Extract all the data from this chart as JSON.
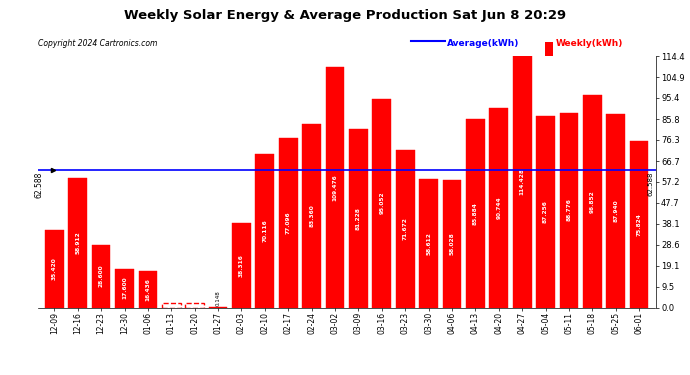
{
  "title": "Weekly Solar Energy & Average Production Sat Jun 8 20:29",
  "copyright": "Copyright 2024 Cartronics.com",
  "average_label": "Average(kWh)",
  "weekly_label": "Weekly(kWh)",
  "average_value": 62.588,
  "categories": [
    "12-09",
    "12-16",
    "12-23",
    "12-30",
    "01-06",
    "01-13",
    "01-20",
    "01-27",
    "02-03",
    "02-10",
    "02-17",
    "02-24",
    "03-02",
    "03-09",
    "03-16",
    "03-23",
    "03-30",
    "04-06",
    "04-13",
    "04-20",
    "04-27",
    "05-04",
    "05-11",
    "05-18",
    "05-25",
    "06-01"
  ],
  "values": [
    35.42,
    58.912,
    28.6,
    17.6,
    16.436,
    0.0,
    0.0,
    0.148,
    38.316,
    70.116,
    77.096,
    83.36,
    109.476,
    81.228,
    95.052,
    71.672,
    58.612,
    58.028,
    85.884,
    90.744,
    114.428,
    87.256,
    88.776,
    96.852,
    87.94,
    75.824
  ],
  "bar_color": "#ff0000",
  "avg_line_color": "blue",
  "grid_color": "#bbbbbb",
  "background_color": "#ffffff",
  "ylabel_right": [
    "0.0",
    "9.5",
    "19.1",
    "28.6",
    "38.1",
    "47.7",
    "57.2",
    "66.7",
    "76.3",
    "85.8",
    "95.4",
    "104.9",
    "114.4"
  ],
  "ytick_values": [
    0.0,
    9.5,
    19.1,
    28.6,
    38.1,
    47.7,
    57.2,
    66.7,
    76.3,
    85.8,
    95.4,
    104.9,
    114.4
  ],
  "ylim": [
    0,
    114.4
  ],
  "bar_width": 0.8
}
